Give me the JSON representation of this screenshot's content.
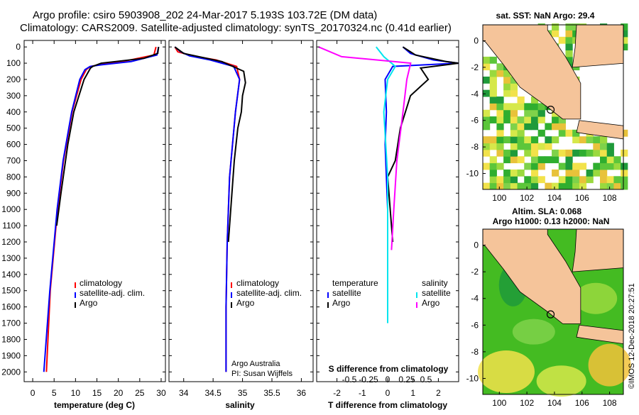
{
  "header": {
    "line1": "Argo profile: csiro 5903908_202 24-Mar-2017 5.193S 103.72E (DM data)",
    "line2": "Climatology: CARS2009. Satellite-adjusted climatology: synTS_20170324.nc (0.41d earlier)"
  },
  "footer": {
    "credit1": "Argo Australia",
    "credit2": "PI: Susan Wijffels",
    "watermark": "©IMOS 12-Dec-2018 20:27:51"
  },
  "colors": {
    "climatology": "#ff0000",
    "satellite": "#0000ff",
    "argo": "#000000",
    "sat_salinity": "#00e5ee",
    "argo_salinity": "#ff00ff",
    "land": "#f5c49a"
  },
  "depth_axis": {
    "ticks": [
      0,
      100,
      200,
      300,
      400,
      500,
      600,
      700,
      800,
      900,
      1000,
      1100,
      1200,
      1300,
      1400,
      1500,
      1600,
      1700,
      1800,
      1900,
      2000
    ],
    "range": [
      -40,
      2060
    ]
  },
  "chart_data": [
    {
      "type": "line",
      "id": "temperature",
      "xlabel": "temperature (deg C)",
      "xticks": [
        0,
        5,
        10,
        15,
        20,
        25,
        30
      ],
      "xlim": [
        -2,
        31
      ],
      "legend": [
        "climatology",
        "satellite-adj. clim.",
        "Argo"
      ],
      "series": [
        {
          "name": "climatology",
          "depth": [
            0,
            50,
            90,
            110,
            120,
            140,
            200,
            400,
            700,
            1000,
            1500,
            2000
          ],
          "values": [
            28.8,
            28.3,
            21,
            15.5,
            13.5,
            12.5,
            11.3,
            9.2,
            7.2,
            5.8,
            4.1,
            3.2
          ]
        },
        {
          "name": "satellite-adj. clim.",
          "depth": [
            0,
            50,
            90,
            110,
            120,
            140,
            200,
            400,
            700,
            1000,
            1500,
            2000
          ],
          "values": [
            29.4,
            29,
            23,
            16,
            13.4,
            12.2,
            11.0,
            9.1,
            7.1,
            5.7,
            4.0,
            2.6
          ]
        },
        {
          "name": "Argo",
          "depth": [
            0,
            40,
            70,
            100,
            120,
            130,
            200,
            400,
            600,
            900,
            1100
          ],
          "values": [
            29.4,
            29.2,
            26,
            16,
            14,
            13.5,
            12,
            9.6,
            8.2,
            6.6,
            5.6
          ]
        }
      ]
    },
    {
      "type": "line",
      "id": "salinity",
      "xlabel": "salinity",
      "xticks": [
        34,
        34.5,
        35,
        35.5,
        36
      ],
      "xticklabels": [
        "34",
        "34.5",
        "35",
        "35.5",
        "36"
      ],
      "xlim": [
        33.75,
        36.2
      ],
      "legend": [
        "climatology",
        "satellite-adj. clim.",
        "Argo"
      ],
      "series": [
        {
          "name": "climatology",
          "depth": [
            0,
            30,
            55,
            80,
            120,
            200,
            400,
            800,
            1200,
            1600,
            2000
          ],
          "values": [
            33.85,
            33.9,
            34.15,
            34.55,
            34.9,
            34.95,
            34.88,
            34.78,
            34.74,
            34.72,
            34.72
          ]
        },
        {
          "name": "satellite-adj. clim.",
          "depth": [
            0,
            30,
            55,
            80,
            120,
            200,
            400,
            800,
            1200,
            1600,
            2000
          ],
          "values": [
            33.85,
            33.95,
            34.1,
            34.45,
            34.85,
            34.95,
            34.88,
            34.78,
            34.74,
            34.72,
            34.72
          ]
        },
        {
          "name": "Argo",
          "depth": [
            0,
            40,
            90,
            150,
            220,
            300,
            400,
            500,
            700,
            900,
            1100,
            1200
          ],
          "values": [
            33.85,
            34.0,
            34.65,
            35.02,
            35.05,
            35.0,
            34.98,
            34.92,
            34.86,
            34.82,
            34.78,
            34.76
          ]
        }
      ]
    },
    {
      "type": "line",
      "id": "differences",
      "xlabel": "T difference from climatology",
      "s_label": "S difference from climatology",
      "xticks": [
        -2,
        -1,
        0,
        1,
        2
      ],
      "xlim": [
        -2.8,
        2.8
      ],
      "s_ticks": [
        -0.5,
        -0.25,
        0,
        0.25,
        0.5
      ],
      "s_ticklabels": [
        "-0.5",
        "-0.25",
        "0",
        "0.25",
        "0.5"
      ],
      "legend_left_title": "temperature",
      "legend_right_title": "salinity",
      "legend_left": [
        "satellite",
        "Argo"
      ],
      "legend_right": [
        "satellite",
        "Argo"
      ],
      "series": [
        {
          "name": "temperature satellite",
          "axis": "T",
          "depth": [
            0,
            40,
            80,
            100,
            120,
            200,
            400,
            600,
            800,
            1000,
            1200
          ],
          "values": [
            0.6,
            0.9,
            1.8,
            2.8,
            0.2,
            -0.1,
            -0.05,
            -0.1,
            -0.05,
            0,
            0
          ]
        },
        {
          "name": "temperature Argo",
          "axis": "T",
          "depth": [
            0,
            50,
            90,
            100,
            130,
            200,
            300,
            500,
            700,
            800,
            1000,
            1200
          ],
          "values": [
            0.6,
            1.1,
            2.3,
            2.8,
            1.3,
            1.6,
            0.9,
            0.5,
            0.3,
            0.0,
            0.1,
            0.2
          ]
        },
        {
          "name": "salinity satellite",
          "axis": "S",
          "depth": [
            0,
            60,
            120,
            200,
            400,
            800,
            1200,
            1700
          ],
          "values": [
            -0.15,
            -0.05,
            0.1,
            0.0,
            -0.05,
            0.0,
            0.0,
            0.0
          ]
        },
        {
          "name": "salinity Argo",
          "axis": "S",
          "depth": [
            0,
            60,
            100,
            200,
            400,
            700,
            1000,
            1250
          ],
          "values": [
            -0.9,
            -0.6,
            0.3,
            0.25,
            0.2,
            0.12,
            0.08,
            0.05
          ]
        }
      ]
    },
    {
      "type": "heatmap",
      "id": "sst_map",
      "title": "sat. SST: NaN Argo: 29.4",
      "xticks": [
        100,
        102,
        104,
        106,
        108
      ],
      "yticks": [
        0,
        -2,
        -4,
        -6,
        -8,
        -10
      ],
      "xlim": [
        98.8,
        109
      ],
      "ylim": [
        -11.2,
        1.2
      ],
      "argo_position": [
        103.72,
        -5.193
      ]
    },
    {
      "type": "heatmap",
      "id": "sla_map",
      "title1": "Altim. SLA: 0.068",
      "title2": "Argo h1000: 0.13 h2000: NaN",
      "xticks": [
        100,
        102,
        104,
        106,
        108
      ],
      "yticks": [
        0,
        -2,
        -4,
        -6,
        -8,
        -10
      ],
      "xlim": [
        98.8,
        109
      ],
      "ylim": [
        -11.2,
        1.2
      ],
      "argo_position": [
        103.72,
        -5.193
      ]
    }
  ]
}
